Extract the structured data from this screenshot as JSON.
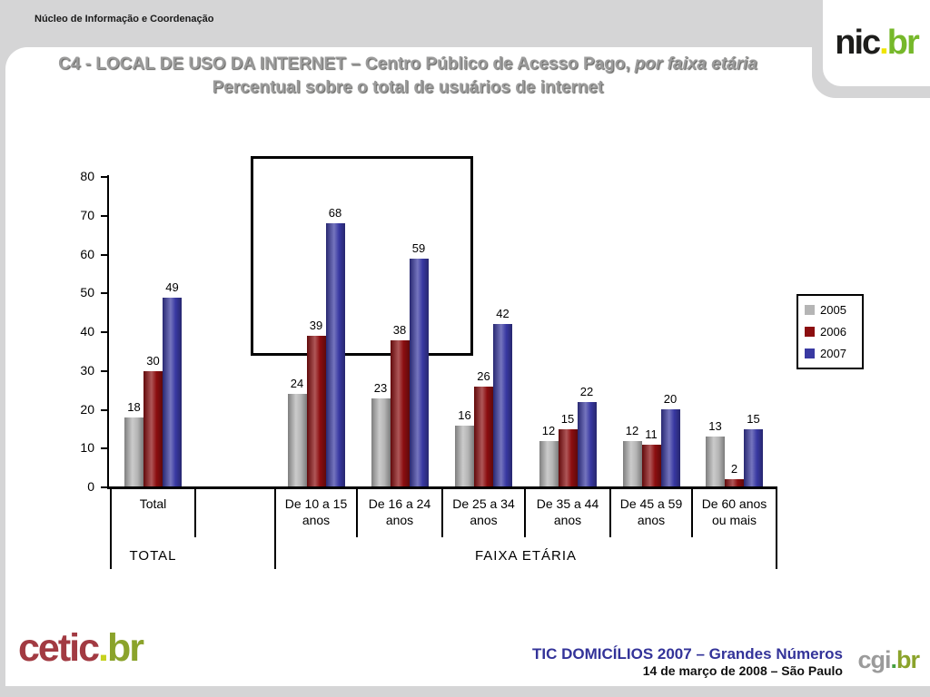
{
  "header": {
    "org_name": "Núcleo de Informação e Coordenação",
    "title_main": "C4 - LOCAL DE USO DA INTERNET – Centro Público de Acesso Pago,",
    "title_italic": "por faixa etária",
    "subtitle": "Percentual sobre o total de usuários de internet"
  },
  "logos": {
    "nic": {
      "name": "nic",
      "dot": ".",
      "tld": "br",
      "name_color": "#1d1d1b",
      "dot_color": "#f0e500",
      "tld_color": "#76b82a"
    },
    "cetic": {
      "name": "cetic",
      "dot": ".",
      "tld": "br",
      "name_color": "#a23a42",
      "dot_color": "#c6d21f",
      "tld_color": "#8ba32b"
    },
    "cgi": {
      "name": "cgi",
      "dot": ".",
      "tld": "br",
      "name_color": "#9b9b9b",
      "dot_color": "#45a041",
      "tld_color": "#8ba32b"
    }
  },
  "chart_data": {
    "type": "bar",
    "title": "C4 - Local de uso da internet – Centro Público de Acesso Pago, por faixa etária",
    "ylabel": "Percentual sobre o total de usuários de internet",
    "categories": [
      "Total",
      "De 10 a 15 anos",
      "De 16 a 24 anos",
      "De 25 a 34 anos",
      "De 35 a 44 anos",
      "De 45 a 59 anos",
      "De 60 anos ou mais"
    ],
    "category_lines": [
      [
        "Total"
      ],
      [
        "De 10 a 15",
        "anos"
      ],
      [
        "De 16 a 24",
        "anos"
      ],
      [
        "De 25 a 34",
        "anos"
      ],
      [
        "De 35 a 44",
        "anos"
      ],
      [
        "De 45 a 59",
        "anos"
      ],
      [
        "De 60 anos",
        "ou mais"
      ]
    ],
    "series": [
      {
        "name": "2005",
        "color": "#b5b5b5",
        "values": [
          18,
          24,
          23,
          16,
          12,
          12,
          13
        ]
      },
      {
        "name": "2006",
        "color": "#8c0e10",
        "values": [
          30,
          39,
          38,
          26,
          15,
          11,
          2
        ]
      },
      {
        "name": "2007",
        "color": "#3939a2",
        "values": [
          49,
          68,
          59,
          42,
          22,
          20,
          15
        ]
      }
    ],
    "ylim": [
      0,
      80
    ],
    "yticks": [
      0,
      10,
      20,
      30,
      40,
      50,
      60,
      70,
      80
    ],
    "grid": false,
    "legend_position": "right",
    "group_labels": {
      "total": "TOTAL",
      "ages": "FAIXA ETÁRIA"
    },
    "highlight_box": {
      "categories": [
        "De 10 a 15 anos",
        "De 16 a 24 anos"
      ],
      "note": "black rectangle highlighting the two youngest age groups"
    }
  },
  "footer": {
    "line1": "TIC DOMICÍLIOS 2007 – Grandes Números",
    "line2": "14 de março de 2008 – São Paulo",
    "line1_color": "#333399"
  }
}
